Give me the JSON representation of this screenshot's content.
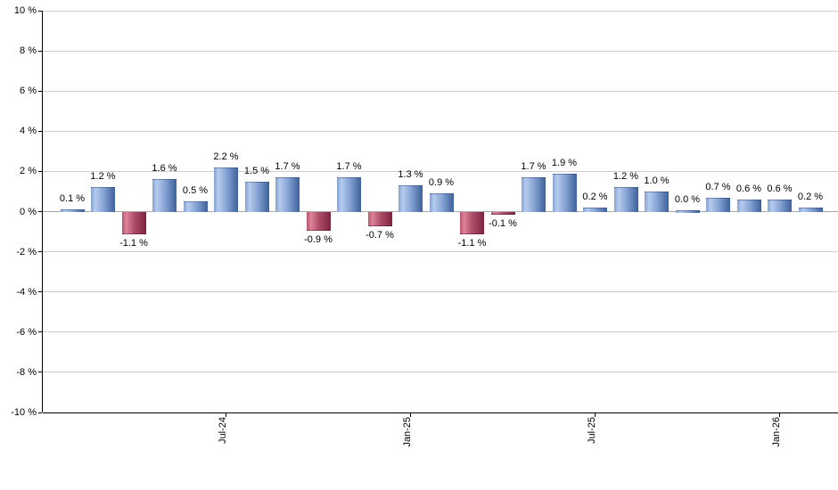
{
  "chart_data": {
    "type": "bar",
    "title": "",
    "grid": true,
    "legend": "none",
    "ylim": [
      -10,
      10
    ],
    "values": [
      0.1,
      1.2,
      -1.1,
      1.6,
      0.5,
      2.2,
      1.5,
      1.7,
      -0.9,
      1.7,
      -0.7,
      1.3,
      0.9,
      -1.1,
      -0.1,
      1.7,
      1.9,
      0.2,
      1.2,
      1.0,
      0.0,
      0.7,
      0.6,
      0.6,
      0.2
    ],
    "bar_labels": [
      "0.1 %",
      "1.2 %",
      "-1.1 %",
      "1.6 %",
      "0.5 %",
      "2.2 %",
      "1.5 %",
      "1.7 %",
      "-0.9 %",
      "1.7 %",
      "-0.7 %",
      "1.3 %",
      "0.9 %",
      "-1.1 %",
      "-0.1 %",
      "1.7 %",
      "1.9 %",
      "0.2 %",
      "1.2 %",
      "1.0 %",
      "0.0 %",
      "0.7 %",
      "0.6 %",
      "0.6 %",
      "0.2 %"
    ],
    "y_tick_values": [
      10,
      8,
      6,
      4,
      2,
      0,
      -2,
      -4,
      -6,
      -8,
      -10
    ],
    "y_tick_labels": [
      "10 %",
      "8 %",
      "6 %",
      "4 %",
      "2 %",
      "0 %",
      "-2 %",
      "-4 %",
      "-6 %",
      "-8 %",
      "-10 %"
    ],
    "x_ticks": [
      {
        "label": "Jul-24",
        "bar_index": 5
      },
      {
        "label": "Jan-25",
        "bar_index": 11
      },
      {
        "label": "Jul-25",
        "bar_index": 17
      },
      {
        "label": "Jan-26",
        "bar_index": 23
      }
    ],
    "colors": {
      "positive_edge": "#86a1d1",
      "positive_light": "#b5cbee",
      "positive_mid": "#89a6d6",
      "positive_dark": "#3d619b",
      "negative_edge": "#ba5570",
      "negative_light": "#dd8399",
      "negative_mid": "#b04e6b",
      "negative_dark": "#7c2340",
      "gridline": "#cdcdcd",
      "zero_line": "#aaaaaa",
      "axis": "#000000",
      "label_text": "#000000"
    }
  }
}
